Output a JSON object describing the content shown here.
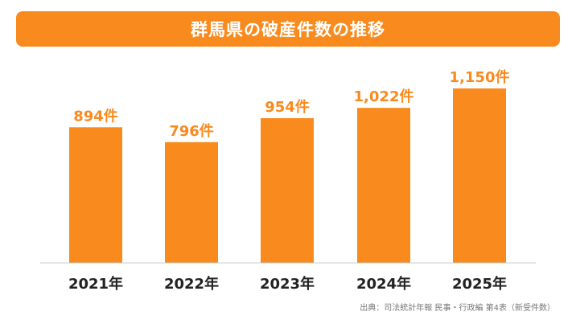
{
  "chart_data": {
    "type": "bar",
    "title": "群馬県の破産件数の推移",
    "categories": [
      "2021年",
      "2022年",
      "2023年",
      "2024年",
      "2025年"
    ],
    "values": [
      894,
      796,
      954,
      1022,
      1150
    ],
    "data_labels": [
      "894件",
      "796件",
      "954件",
      "1,022件",
      "1,150件"
    ],
    "ylim": [
      0,
      1250
    ],
    "grid": false,
    "bar_color": "#F98A1E",
    "source": "出典：司法統計年報 民事・行政編 第4表（新受件数）"
  }
}
